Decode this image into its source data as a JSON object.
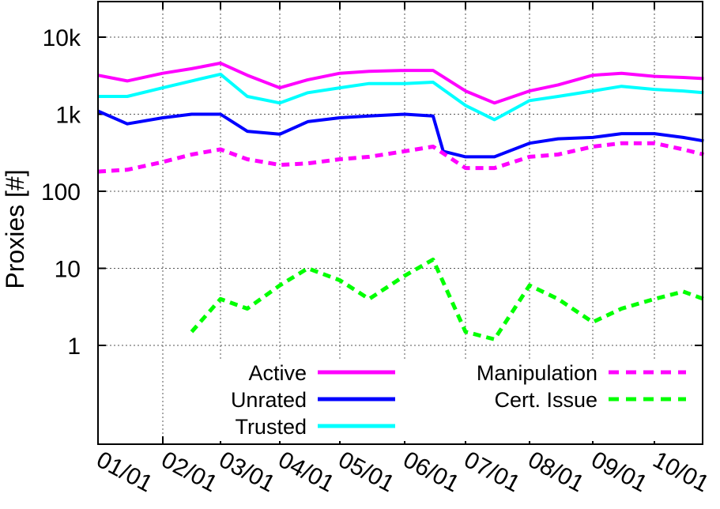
{
  "chart_data": {
    "type": "line",
    "title": "",
    "xlabel": "",
    "ylabel": "Proxies [#]",
    "yscale": "log",
    "ylim": [
      0.1,
      30000
    ],
    "grid": true,
    "legend_position": "bottom-center",
    "x_ticks": [
      "01/01",
      "02/01",
      "03/01",
      "04/01",
      "05/01",
      "06/01",
      "07/01",
      "08/01",
      "09/01",
      "10/01"
    ],
    "y_ticks": [
      {
        "value": 1,
        "label": "1"
      },
      {
        "value": 10,
        "label": "10"
      },
      {
        "value": 100,
        "label": "100"
      },
      {
        "value": 1000,
        "label": "1k"
      },
      {
        "value": 10000,
        "label": "10k"
      }
    ],
    "series": [
      {
        "name": "Active",
        "color": "#ff00ff",
        "style": "solid",
        "x": [
          "01/01",
          "01/15",
          "02/01",
          "02/15",
          "03/01",
          "03/15",
          "04/01",
          "04/15",
          "05/01",
          "05/15",
          "06/01",
          "06/15",
          "07/01",
          "07/15",
          "08/01",
          "08/15",
          "09/01",
          "09/15",
          "10/01",
          "10/15",
          "10/25"
        ],
        "y": [
          3200,
          2700,
          3400,
          3900,
          4600,
          3200,
          2200,
          2800,
          3400,
          3600,
          3700,
          3700,
          2000,
          1400,
          2000,
          2400,
          3200,
          3400,
          3100,
          3000,
          2900
        ]
      },
      {
        "name": "Unrated",
        "color": "#0000ff",
        "style": "solid",
        "x": [
          "01/01",
          "01/15",
          "02/01",
          "02/15",
          "03/01",
          "03/15",
          "04/01",
          "04/15",
          "05/01",
          "05/15",
          "06/01",
          "06/15",
          "06/20",
          "07/01",
          "07/15",
          "08/01",
          "08/15",
          "09/01",
          "09/15",
          "10/01",
          "10/15",
          "10/25"
        ],
        "y": [
          1100,
          750,
          900,
          1000,
          1000,
          600,
          550,
          800,
          900,
          950,
          1000,
          950,
          330,
          280,
          280,
          420,
          480,
          500,
          560,
          560,
          500,
          450
        ]
      },
      {
        "name": "Trusted",
        "color": "#00ffff",
        "style": "solid",
        "x": [
          "01/01",
          "01/15",
          "02/01",
          "02/15",
          "03/01",
          "03/15",
          "04/01",
          "04/15",
          "05/01",
          "05/15",
          "06/01",
          "06/15",
          "07/01",
          "07/15",
          "08/01",
          "08/15",
          "09/01",
          "09/15",
          "10/01",
          "10/15",
          "10/25"
        ],
        "y": [
          1700,
          1700,
          2200,
          2700,
          3300,
          1700,
          1400,
          1900,
          2200,
          2500,
          2500,
          2600,
          1300,
          850,
          1500,
          1700,
          2000,
          2300,
          2100,
          2000,
          1900
        ]
      },
      {
        "name": "Manipulation",
        "color": "#ff00ff",
        "style": "dashed",
        "x": [
          "01/01",
          "01/15",
          "02/01",
          "02/15",
          "03/01",
          "03/15",
          "04/01",
          "04/15",
          "05/01",
          "05/15",
          "06/01",
          "06/15",
          "07/01",
          "07/15",
          "08/01",
          "08/15",
          "09/01",
          "09/15",
          "10/01",
          "10/15",
          "10/25"
        ],
        "y": [
          180,
          190,
          240,
          300,
          350,
          260,
          220,
          230,
          260,
          280,
          330,
          380,
          200,
          200,
          280,
          300,
          380,
          420,
          420,
          350,
          300
        ]
      },
      {
        "name": "Cert. Issue",
        "color": "#00ff00",
        "style": "dashed",
        "x": [
          "02/15",
          "03/01",
          "03/15",
          "04/01",
          "04/15",
          "05/01",
          "05/15",
          "06/01",
          "06/15",
          "07/01",
          "07/15",
          "08/01",
          "08/15",
          "09/01",
          "09/15",
          "10/01",
          "10/15",
          "10/25"
        ],
        "y": [
          1.5,
          4,
          3,
          6,
          10,
          7,
          4,
          8,
          13,
          1.5,
          1.2,
          6,
          4,
          2,
          3,
          4,
          5,
          4
        ]
      }
    ]
  }
}
